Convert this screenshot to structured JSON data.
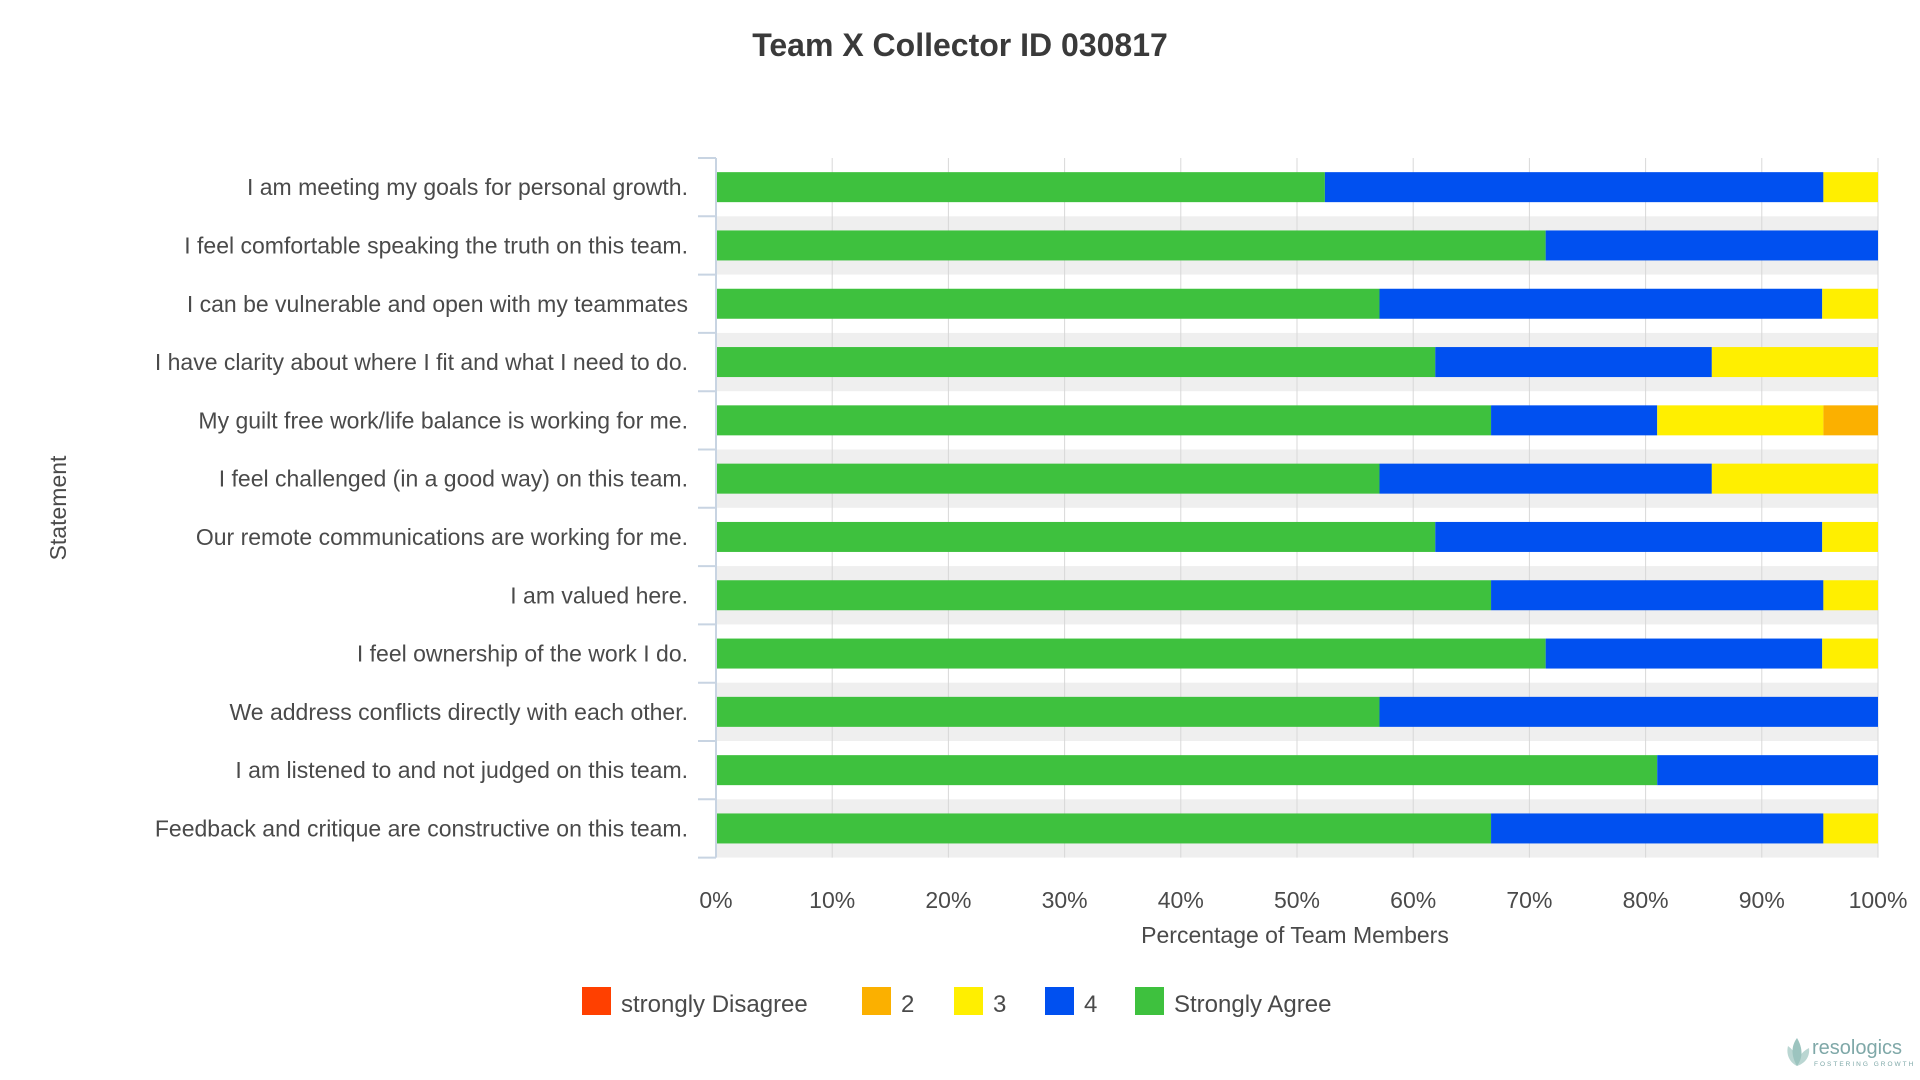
{
  "chart_data": {
    "type": "bar",
    "orientation": "horizontal",
    "stacked": true,
    "title": "Team X Collector ID 030817",
    "xlabel": "Percentage of Team Members",
    "ylabel": "Statement",
    "xlim": [
      0,
      100
    ],
    "x_ticks": [
      "0%",
      "10%",
      "20%",
      "30%",
      "40%",
      "50%",
      "60%",
      "70%",
      "80%",
      "90%",
      "100%"
    ],
    "grid": true,
    "legend_position": "bottom",
    "categories": [
      "I am meeting my goals for personal growth.",
      "I feel comfortable speaking the truth on this team.",
      "I can be vulnerable and open with my teammates",
      "I have clarity about where I fit and what I need to do.",
      "My guilt free work/life balance is working for me.",
      "I feel challenged (in a good way) on this team.",
      "Our remote communications are working for me.",
      "I am valued here.",
      "I feel ownership of the work I do.",
      "We address conflicts directly with each other.",
      "I am listened to and not judged on this team.",
      "Feedback and critique are constructive on this team."
    ],
    "series": [
      {
        "name": "Strongly Agree",
        "color": "#3ec13e",
        "values": [
          52.4,
          71.4,
          57.1,
          61.9,
          66.7,
          57.1,
          61.9,
          66.7,
          71.4,
          57.1,
          81.0,
          66.7
        ]
      },
      {
        "name": "4",
        "color": "#0050f0",
        "values": [
          42.9,
          28.6,
          38.1,
          23.8,
          14.3,
          28.6,
          33.3,
          28.6,
          23.8,
          42.9,
          19.0,
          28.6
        ]
      },
      {
        "name": "3",
        "color": "#ffef00",
        "values": [
          4.8,
          0,
          4.8,
          14.3,
          14.3,
          14.3,
          4.8,
          4.8,
          4.8,
          0,
          0,
          4.8
        ]
      },
      {
        "name": "2",
        "color": "#fbb000",
        "values": [
          0,
          0,
          0,
          0,
          4.8,
          0,
          0,
          0,
          0,
          0,
          0,
          0
        ]
      },
      {
        "name": "strongly Disagree",
        "color": "#ff4000",
        "values": [
          0,
          0,
          0,
          0,
          0,
          0,
          0,
          0,
          0,
          0,
          0,
          0
        ]
      }
    ],
    "legend_order": [
      "strongly Disagree",
      "2",
      "3",
      "4",
      "Strongly Agree"
    ]
  },
  "logo": {
    "name": "resologics",
    "tagline": "FOSTERING GROWTH"
  }
}
